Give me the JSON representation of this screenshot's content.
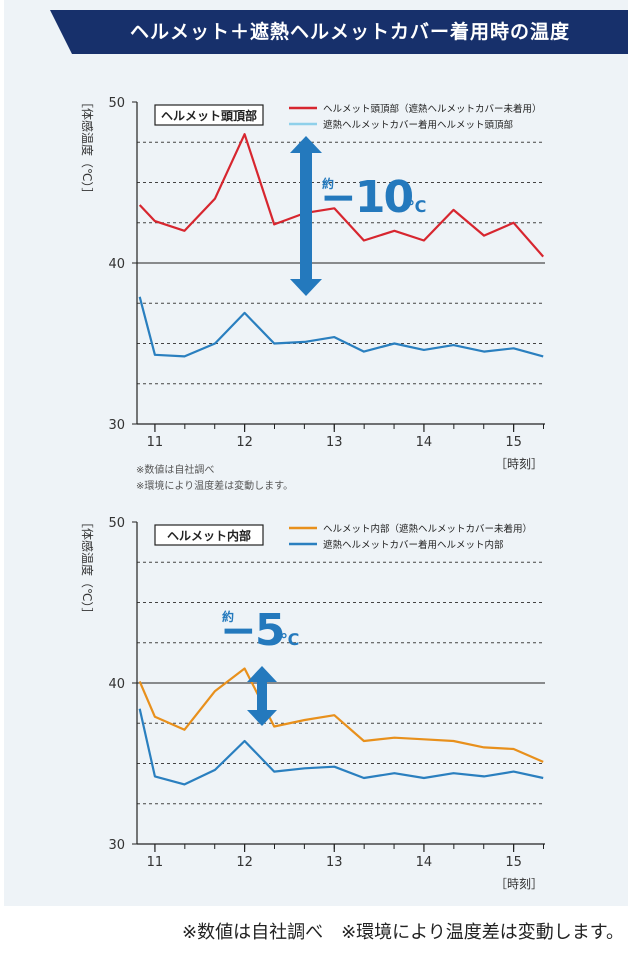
{
  "banner": {
    "title": "ヘルメット＋遮熱ヘルメットカバー着用時の温度"
  },
  "colors": {
    "banner_bg": "#17306b",
    "panel_bg": "#eef3f7",
    "arrow": "#2479bd"
  },
  "notes": {
    "note1": "※数値は自社調べ",
    "note2": "※環境により温度差は変動します。",
    "footer": "※数値は自社調べ　※環境により温度差は変動します。"
  },
  "chart_data": [
    {
      "type": "line",
      "title": "ヘルメット頭頂部",
      "ylabel": "［体感温度（℃）］",
      "xlabel": "［時刻］",
      "ylim": [
        30,
        50
      ],
      "xlim": [
        10.8,
        15.35
      ],
      "yticks": [
        30,
        40,
        50
      ],
      "xticks": [
        11,
        12,
        13,
        14,
        15
      ],
      "grid": "dashed-horizontal",
      "legend_position": "top-right",
      "annotation": {
        "prefix": "約",
        "value": "−10",
        "unit": "℃"
      },
      "series": [
        {
          "name": "ヘルメット頭頂部（遮熱ヘルメットカバー未着用）",
          "color": "#d7262f",
          "x": [
            10.83,
            11.0,
            11.33,
            11.67,
            12.0,
            12.33,
            12.67,
            13.0,
            13.33,
            13.67,
            14.0,
            14.33,
            14.67,
            15.0,
            15.33
          ],
          "y": [
            43.6,
            42.6,
            42.0,
            44.0,
            48.0,
            42.4,
            43.1,
            43.4,
            41.4,
            42.0,
            41.4,
            43.3,
            41.7,
            42.5,
            40.4
          ]
        },
        {
          "name": "遮熱ヘルメットカバー着用ヘルメット頭頂部",
          "color": "#2a7fbf",
          "legend_color": "#8fd0ea",
          "x": [
            10.83,
            11.0,
            11.33,
            11.67,
            12.0,
            12.33,
            12.67,
            13.0,
            13.33,
            13.67,
            14.0,
            14.33,
            14.67,
            15.0,
            15.33
          ],
          "y": [
            37.9,
            34.3,
            34.2,
            35.0,
            36.9,
            35.0,
            35.1,
            35.4,
            34.5,
            35.0,
            34.6,
            34.9,
            34.5,
            34.7,
            34.2
          ]
        }
      ]
    },
    {
      "type": "line",
      "title": "ヘルメット内部",
      "ylabel": "［体感温度（℃）］",
      "xlabel": "［時刻］",
      "ylim": [
        30,
        50
      ],
      "xlim": [
        10.8,
        15.35
      ],
      "yticks": [
        30,
        40,
        50
      ],
      "xticks": [
        11,
        12,
        13,
        14,
        15
      ],
      "grid": "dashed-horizontal",
      "legend_position": "top-right",
      "annotation": {
        "prefix": "約",
        "value": "−5",
        "unit": "℃"
      },
      "series": [
        {
          "name": "ヘルメット内部（遮熱ヘルメットカバー未着用）",
          "color": "#e8901c",
          "x": [
            10.83,
            11.0,
            11.33,
            11.67,
            12.0,
            12.33,
            12.67,
            13.0,
            13.33,
            13.67,
            14.0,
            14.33,
            14.67,
            15.0,
            15.33
          ],
          "y": [
            40.1,
            37.9,
            37.1,
            39.5,
            40.9,
            37.3,
            37.7,
            38.0,
            36.4,
            36.6,
            36.5,
            36.4,
            36.0,
            35.9,
            35.1
          ]
        },
        {
          "name": "遮熱ヘルメットカバー着用ヘルメット内部",
          "color": "#2a7fbf",
          "x": [
            10.83,
            11.0,
            11.33,
            11.67,
            12.0,
            12.33,
            12.67,
            13.0,
            13.33,
            13.67,
            14.0,
            14.33,
            14.67,
            15.0,
            15.33
          ],
          "y": [
            38.4,
            34.2,
            33.7,
            34.6,
            36.4,
            34.5,
            34.7,
            34.8,
            34.1,
            34.4,
            34.1,
            34.4,
            34.2,
            34.5,
            34.1
          ]
        }
      ]
    }
  ]
}
